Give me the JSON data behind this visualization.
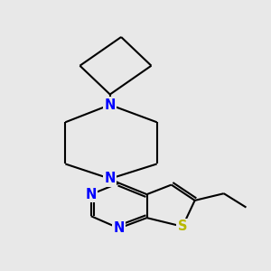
{
  "bg_color": "#e8e8e8",
  "bond_color": "#000000",
  "N_color": "#0000ff",
  "S_color": "#b8b800",
  "line_width": 1.5,
  "font_size_atom": 10.5,
  "xlim": [
    0,
    10
  ],
  "ylim": [
    0,
    10
  ]
}
